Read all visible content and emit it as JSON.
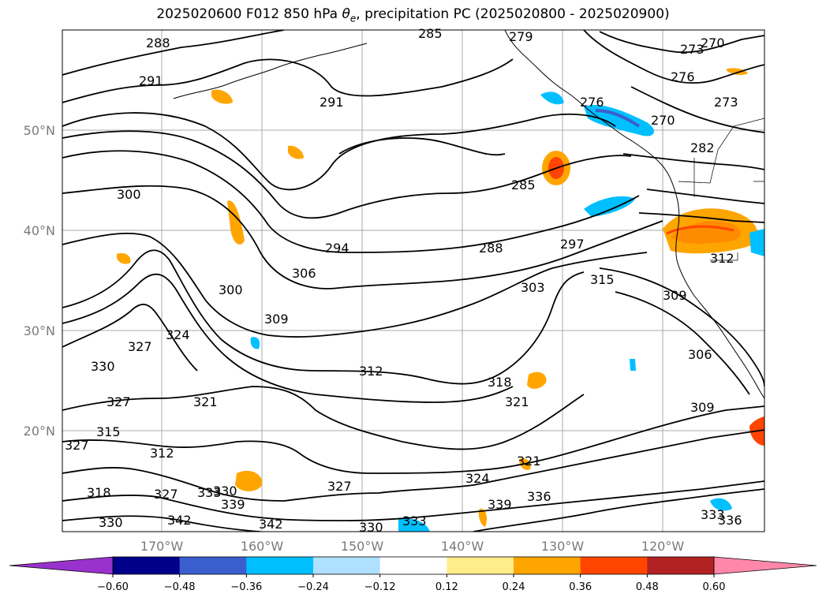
{
  "title": {
    "prefix": "2025020600 F012 850 hPa ",
    "theta": "θ",
    "sub": "e",
    "suffix": ", precipitation PC (2025020800 - 2025020900)"
  },
  "lat_labels": [
    "50°N",
    "40°N",
    "30°N",
    "20°N"
  ],
  "lon_labels": [
    "170°W",
    "160°W",
    "150°W",
    "140°W",
    "130°W",
    "120°W"
  ],
  "contour_labels": [
    "288",
    "285",
    "279",
    "270",
    "273",
    "291",
    "276",
    "273",
    "291",
    "276",
    "270",
    "300",
    "282",
    "300",
    "285",
    "294",
    "288",
    "297",
    "306",
    "303",
    "315",
    "312",
    "300",
    "309",
    "309",
    "324",
    "327",
    "330",
    "312",
    "306",
    "318",
    "321",
    "327",
    "321",
    "309",
    "315",
    "327",
    "312",
    "321",
    "318",
    "327",
    "333",
    "330",
    "339",
    "327",
    "324",
    "339",
    "336",
    "342",
    "342",
    "330",
    "333",
    "333",
    "336",
    "330",
    "336"
  ],
  "colorbar": {
    "colors": [
      "#9932cc",
      "#00008b",
      "#3a5fcd",
      "#00bfff",
      "#b0e0ff",
      "#ffffff",
      "#ffec8b",
      "#ffa500",
      "#ff4500",
      "#b22222",
      "#ff88aa"
    ],
    "tick_labels": [
      "−0.60",
      "−0.48",
      "−0.36",
      "−0.24",
      "−0.12",
      "0.12",
      "0.24",
      "0.36",
      "0.48",
      "0.60"
    ]
  }
}
